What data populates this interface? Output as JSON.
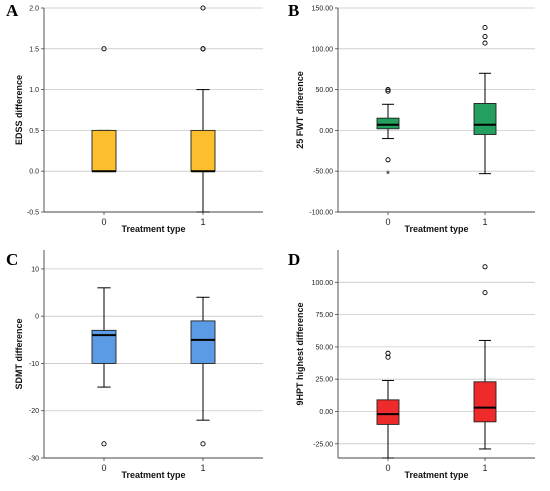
{
  "chart_data": [
    {
      "panel_letter": "A",
      "type": "box",
      "xlabel": "Treatment type",
      "ylabel": "EDSS difference",
      "categories": [
        "0",
        "1"
      ],
      "yticks": [
        "-0.5",
        "0.0",
        "0.5",
        "1.0",
        "1.5",
        "2.0"
      ],
      "ylim": [
        -0.5,
        2.0
      ],
      "grid": true,
      "color": "#FDBF2D",
      "boxes": [
        {
          "q1": 0.0,
          "median": 0.0,
          "q3": 0.5,
          "whisker_low": 0.0,
          "whisker_high": 0.5,
          "outliers": [
            1.5
          ],
          "extremes": []
        },
        {
          "q1": 0.0,
          "median": 0.0,
          "q3": 0.5,
          "whisker_low": -0.5,
          "whisker_high": 1.0,
          "outliers": [
            1.5,
            1.5,
            2.0
          ],
          "extremes": []
        }
      ]
    },
    {
      "panel_letter": "B",
      "type": "box",
      "xlabel": "Treatment type",
      "ylabel": "25 FWT difference",
      "categories": [
        "0",
        "1"
      ],
      "yticks": [
        "-100.00",
        "-50.00",
        "0.00",
        "50.00",
        "100.00",
        "150.00"
      ],
      "ylim": [
        -100,
        150
      ],
      "grid": true,
      "color": "#23A05F",
      "boxes": [
        {
          "q1": 2,
          "median": 7,
          "q3": 15,
          "whisker_low": -10,
          "whisker_high": 32,
          "outliers": [
            48,
            50,
            -36
          ],
          "extremes": [
            -53
          ]
        },
        {
          "q1": -5,
          "median": 7,
          "q3": 33,
          "whisker_low": -53,
          "whisker_high": 70,
          "outliers": [
            107,
            115,
            126
          ],
          "extremes": []
        }
      ]
    },
    {
      "panel_letter": "C",
      "type": "box",
      "xlabel": "Treatment type",
      "ylabel": "SDMT difference",
      "categories": [
        "0",
        "1"
      ],
      "yticks": [
        "-30",
        "-20",
        "-10",
        "0",
        "10"
      ],
      "ylim": [
        -30,
        14
      ],
      "grid": true,
      "color": "#5B9BE6",
      "boxes": [
        {
          "q1": -10,
          "median": -4,
          "q3": -3,
          "whisker_low": -15,
          "whisker_high": 6,
          "outliers": [
            -27
          ],
          "extremes": []
        },
        {
          "q1": -10,
          "median": -5,
          "q3": -1,
          "whisker_low": -22,
          "whisker_high": 4,
          "outliers": [
            -27
          ],
          "extremes": []
        }
      ]
    },
    {
      "panel_letter": "D",
      "type": "box",
      "xlabel": "Treatment type",
      "ylabel": "9HPT highest difference",
      "categories": [
        "0",
        "1"
      ],
      "yticks": [
        "-25.00",
        "0.00",
        "25.00",
        "50.00",
        "75.00",
        "100.00"
      ],
      "ylim": [
        -36,
        125
      ],
      "grid": true,
      "color": "#EE2A2A",
      "boxes": [
        {
          "q1": -10,
          "median": -2,
          "q3": 9,
          "whisker_low": -36,
          "whisker_high": 24,
          "outliers": [
            42,
            45
          ],
          "extremes": []
        },
        {
          "q1": -8,
          "median": 3,
          "q3": 23,
          "whisker_low": -29,
          "whisker_high": 55,
          "outliers": [
            92,
            112
          ],
          "extremes": []
        }
      ]
    }
  ]
}
